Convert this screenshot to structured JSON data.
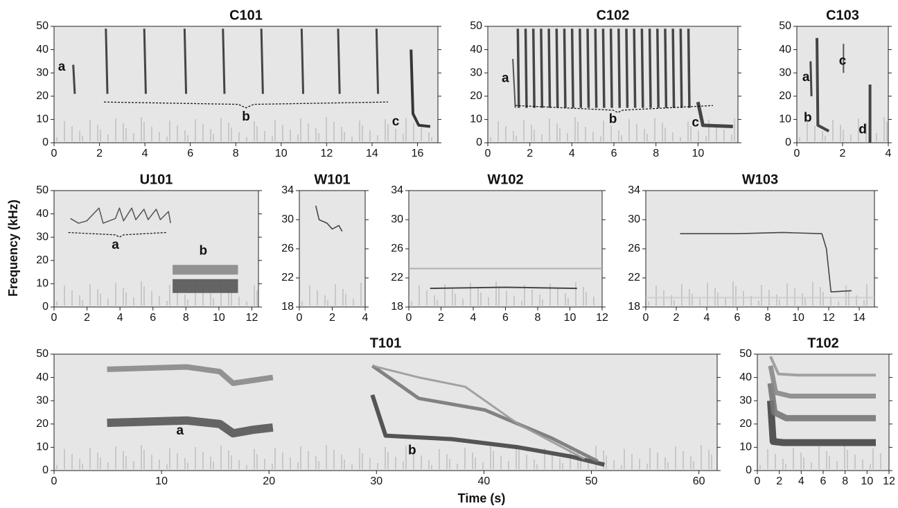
{
  "chart_data": [
    {
      "type": "spectrogram",
      "title": "C101",
      "xlim": [
        0,
        16.9
      ],
      "xticks": [
        0,
        2,
        4,
        6,
        8,
        10,
        12,
        14,
        16
      ],
      "ylim": [
        0,
        50
      ],
      "yticks": [
        0,
        10,
        20,
        30,
        40,
        50
      ],
      "annotations": [
        "a",
        "b",
        "c"
      ]
    },
    {
      "type": "spectrogram",
      "title": "C102",
      "xlim": [
        0,
        11.9
      ],
      "xticks": [
        0,
        2,
        4,
        6,
        8,
        10
      ],
      "ylim": [
        0,
        50
      ],
      "yticks": [
        0,
        10,
        20,
        30,
        40,
        50
      ],
      "annotations": [
        "a",
        "b",
        "c"
      ]
    },
    {
      "type": "spectrogram",
      "title": "C103",
      "xlim": [
        0,
        4
      ],
      "xticks": [
        0,
        2,
        4
      ],
      "ylim": [
        0,
        50
      ],
      "yticks": [
        0,
        10,
        20,
        30,
        40,
        50
      ],
      "annotations": [
        "a",
        "b",
        "c",
        "d"
      ]
    },
    {
      "type": "spectrogram",
      "title": "U101",
      "xlim": [
        0,
        12.4
      ],
      "xticks": [
        0,
        2,
        4,
        6,
        8,
        10,
        12
      ],
      "ylim": [
        0,
        50
      ],
      "yticks": [
        0,
        10,
        20,
        30,
        40,
        50
      ],
      "annotations": [
        "a",
        "b"
      ]
    },
    {
      "type": "spectrogram",
      "title": "W101",
      "xlim": [
        0,
        4
      ],
      "xticks": [
        0,
        2,
        4
      ],
      "ylim": [
        18,
        34
      ],
      "yticks": [
        18,
        22,
        26,
        30,
        34
      ],
      "annotations": []
    },
    {
      "type": "spectrogram",
      "title": "W102",
      "xlim": [
        0,
        12
      ],
      "xticks": [
        0,
        2,
        4,
        6,
        8,
        10,
        12
      ],
      "ylim": [
        18,
        34
      ],
      "yticks": [
        18,
        22,
        26,
        30,
        34
      ],
      "annotations": []
    },
    {
      "type": "spectrogram",
      "title": "W103",
      "xlim": [
        0,
        15
      ],
      "xticks": [
        0,
        2,
        4,
        6,
        8,
        10,
        12,
        14
      ],
      "ylim": [
        18,
        34
      ],
      "yticks": [
        18,
        22,
        26,
        30,
        34
      ],
      "annotations": []
    },
    {
      "type": "spectrogram",
      "title": "T101",
      "xlim": [
        0,
        61.7
      ],
      "xticks": [
        0,
        10,
        20,
        30,
        40,
        50,
        60
      ],
      "ylim": [
        0,
        50
      ],
      "yticks": [
        0,
        10,
        20,
        30,
        40,
        50
      ],
      "annotations": [
        "a",
        "b"
      ]
    },
    {
      "type": "spectrogram",
      "title": "T102",
      "xlim": [
        0,
        12
      ],
      "xticks": [
        0,
        2,
        4,
        6,
        8,
        10,
        12
      ],
      "ylim": [
        0,
        50
      ],
      "yticks": [
        0,
        10,
        20,
        30,
        40,
        50
      ],
      "annotations": []
    }
  ],
  "y_label": "Frequency (kHz)",
  "x_label": "Time (s)"
}
